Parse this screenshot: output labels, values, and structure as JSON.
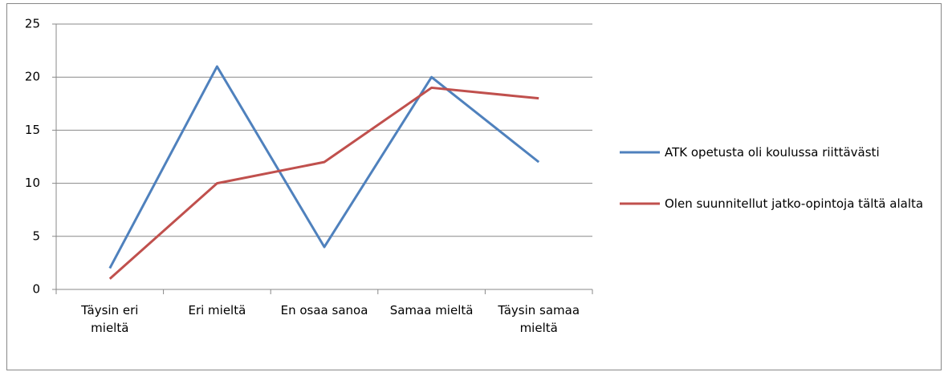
{
  "chart_data": {
    "type": "line",
    "categories": [
      "Täysin eri mieltä",
      "Eri mieltä",
      "En osaa sanoa",
      "Samaa mieltä",
      "Täysin samaa mieltä"
    ],
    "series": [
      {
        "name": "ATK opetusta oli koulussa riittävästi",
        "color": "#4f81bd",
        "values": [
          2,
          21,
          4,
          20,
          12
        ]
      },
      {
        "name": "Olen suunnitellut jatko-opintoja tältä alalta",
        "color": "#c0504d",
        "values": [
          1,
          10,
          12,
          19,
          18
        ]
      }
    ],
    "ylim": [
      0,
      25
    ],
    "yticks": [
      0,
      5,
      10,
      15,
      20,
      25
    ],
    "grid": true,
    "legend": "right"
  }
}
